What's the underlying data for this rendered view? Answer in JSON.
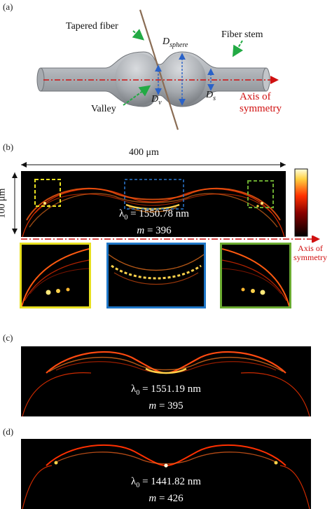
{
  "panel_a": {
    "label": "(a)",
    "tapered_fiber": "Tapered fiber",
    "fiber_stem": "Fiber stem",
    "valley": "Valley",
    "d_sphere_main": "D",
    "d_sphere_sub": "sphere",
    "d_v_main": "D",
    "d_v_sub": "v",
    "d_s_main": "D",
    "d_s_sub": "s",
    "axis_line1": "Axis of",
    "axis_line2": "symmetry"
  },
  "panel_b": {
    "label": "(b)",
    "width_label": "400 μm",
    "height_label": "100 μm",
    "lambda_text": "λ",
    "lambda_sub": "0",
    "lambda_value": " = 1550.78 nm",
    "m_symbol": "m",
    "m_value": " = 396",
    "axis_line1": "Axis of",
    "axis_line2": "symmetry"
  },
  "panel_c": {
    "label": "(c)",
    "lambda_text": "λ",
    "lambda_sub": "0",
    "lambda_value": " = 1551.19 nm",
    "m_symbol": "m",
    "m_value": " = 395"
  },
  "panel_d": {
    "label": "(d)",
    "lambda_text": "λ",
    "lambda_sub": "0",
    "lambda_value": " = 1441.82 nm",
    "m_symbol": "m",
    "m_value": " = 426"
  },
  "colors": {
    "annotation_red": "#d01010",
    "arrow_green": "#22aa44",
    "arrow_blue": "#2a62c8",
    "inset_yellow": "#e8e020",
    "inset_blue": "#1f77c8",
    "inset_green": "#6aaa30"
  }
}
